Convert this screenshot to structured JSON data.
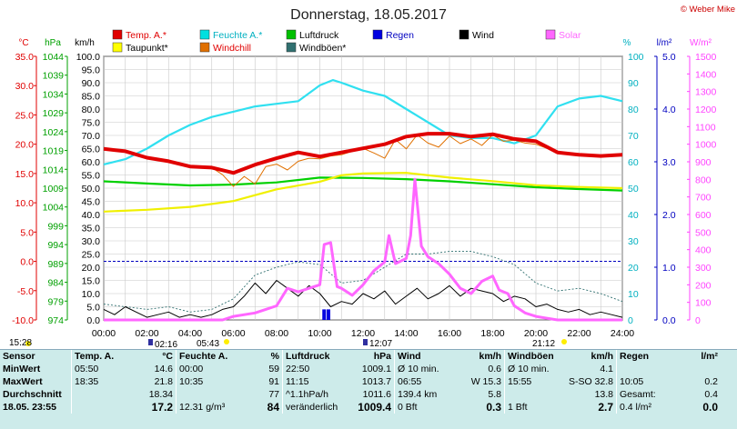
{
  "title": "Donnerstag, 18.05.2017",
  "copyright": "© Weber Mike",
  "legend": [
    {
      "label": "Temp. A.*",
      "color": "#e00000"
    },
    {
      "label": "Feuchte A.*",
      "color": "#00e0e0"
    },
    {
      "label": "Luftdruck",
      "color": "#00c000"
    },
    {
      "label": "Regen",
      "color": "#0000e0"
    },
    {
      "label": "Wind",
      "color": "#000000"
    },
    {
      "label": "Solar",
      "color": "#ff66ff"
    },
    {
      "label": "Taupunkt*",
      "color": "#ffff00"
    },
    {
      "label": "Windchill",
      "color": "#e07000"
    },
    {
      "label": "Windböen*",
      "color": "#307070"
    }
  ],
  "axis_units": {
    "temp": "°C",
    "pressure": "hPa",
    "wind": "km/h",
    "humidity": "%",
    "rain": "l/m²",
    "solar": "W/m²"
  },
  "sun_times": {
    "sunrise_civil": "05:43",
    "sunset": "21:12",
    "day_start": "15:28",
    "moonrise": "02:16",
    "moon_transit": "12:07"
  },
  "chart_data": {
    "type": "line",
    "x_ticks": [
      "00:00",
      "02:00",
      "04:00",
      "06:00",
      "08:00",
      "10:00",
      "12:00",
      "14:00",
      "16:00",
      "18:00",
      "20:00",
      "22:00",
      "24:00"
    ],
    "x_range_h": [
      0,
      24
    ],
    "axes": {
      "temp": {
        "range": [
          -10,
          35
        ],
        "ticks": [
          "35.0",
          "30.0",
          "25.0",
          "20.0",
          "15.0",
          "10.0",
          "5.0",
          "0.0",
          "-5.0",
          "-10.0"
        ]
      },
      "pressure": {
        "range": [
          974,
          1045.5
        ],
        "ticks": [
          "1044",
          "1039",
          "1034",
          "1029",
          "1024",
          "1019",
          "1014",
          "1009",
          "1004",
          "999",
          "994",
          "989",
          "984",
          "979",
          "974"
        ]
      },
      "wind": {
        "range": [
          0,
          100
        ],
        "ticks": [
          "100.0",
          "95.0",
          "90.0",
          "85.0",
          "80.0",
          "75.0",
          "70.0",
          "65.0",
          "60.0",
          "55.0",
          "50.0",
          "45.0",
          "40.0",
          "35.0",
          "30.0",
          "25.0",
          "20.0",
          "15.0",
          "10.0",
          "5.0",
          "0.0"
        ]
      },
      "humidity": {
        "range": [
          0,
          100
        ],
        "ticks": [
          "100",
          "90",
          "80",
          "70",
          "60",
          "50",
          "40",
          "30",
          "20",
          "10",
          "0"
        ]
      },
      "rain": {
        "range": [
          0,
          5
        ],
        "ticks": [
          "5.0",
          "4.0",
          "3.0",
          "2.0",
          "1.0",
          "0.0"
        ]
      },
      "solar": {
        "range": [
          0,
          1500
        ],
        "ticks": [
          "1500",
          "1400",
          "1300",
          "1200",
          "1100",
          "1000",
          "900",
          "800",
          "700",
          "600",
          "500",
          "400",
          "300",
          "200",
          "100",
          "0"
        ]
      }
    },
    "series": [
      {
        "name": "Temp. A.*",
        "axis": "temp",
        "x": [
          0,
          1,
          2,
          3,
          4,
          5,
          6,
          7,
          8,
          9,
          10,
          11,
          12,
          13,
          14,
          15,
          16,
          17,
          18,
          19,
          20,
          21,
          22,
          23,
          24
        ],
        "y": [
          19.2,
          18.8,
          17.7,
          17.1,
          16.2,
          16.0,
          15.1,
          16.5,
          17.6,
          18.6,
          17.9,
          18.6,
          19.3,
          20.0,
          21.3,
          21.8,
          21.8,
          21.3,
          21.7,
          20.9,
          20.5,
          18.6,
          18.2,
          18.0,
          18.2
        ]
      },
      {
        "name": "Feuchte A.*",
        "axis": "humidity",
        "x": [
          0,
          1,
          2,
          3,
          4,
          5,
          6,
          7,
          8,
          9,
          10,
          10.6,
          11,
          12,
          13,
          14,
          15,
          16,
          17,
          18,
          19,
          20,
          21,
          22,
          23,
          24
        ],
        "y": [
          59,
          61,
          65,
          70,
          74,
          77,
          79,
          81,
          82,
          83,
          89,
          91,
          90,
          87,
          85,
          80,
          75,
          70,
          69,
          69,
          67,
          70,
          81,
          84,
          85,
          83
        ]
      },
      {
        "name": "Luftdruck",
        "axis": "pressure",
        "x": [
          0,
          2,
          4,
          6,
          8,
          10,
          12,
          14,
          16,
          18,
          20,
          22,
          24
        ],
        "y": [
          1011.6,
          1011.0,
          1010.5,
          1010.7,
          1011.3,
          1012.6,
          1012.5,
          1012.2,
          1011.6,
          1010.8,
          1010.0,
          1009.5,
          1009.1
        ]
      },
      {
        "name": "Taupunkt*",
        "axis": "temp",
        "x": [
          0,
          2,
          4,
          6,
          8,
          10,
          11,
          12,
          14,
          16,
          18,
          20,
          22,
          24
        ],
        "y": [
          8.5,
          8.8,
          9.3,
          10.3,
          12.3,
          13.6,
          14.7,
          15.0,
          15.1,
          14.3,
          13.7,
          13.0,
          12.7,
          12.5
        ]
      },
      {
        "name": "Windchill",
        "axis": "temp",
        "x": [
          0,
          1,
          2,
          3,
          4,
          5,
          5.5,
          6,
          6.5,
          7,
          7.5,
          8,
          8.5,
          9,
          9.5,
          10,
          10.5,
          11,
          11.5,
          12,
          12.5,
          13,
          13.5,
          14,
          14.5,
          15,
          15.5,
          16,
          16.5,
          17,
          17.5,
          18,
          18.5,
          19,
          19.5,
          20,
          21,
          22,
          23,
          24
        ],
        "y": [
          19.2,
          18.8,
          17.7,
          17.1,
          16.2,
          16.0,
          14.8,
          12.8,
          14.5,
          13.2,
          16.2,
          16.6,
          15.6,
          17.1,
          17.6,
          17.5,
          18.0,
          18.2,
          18.8,
          19.3,
          18.5,
          17.6,
          20.8,
          19.2,
          21.6,
          20.2,
          19.5,
          21.4,
          20.1,
          20.9,
          19.8,
          21.6,
          20.5,
          20.7,
          20.2,
          20.0,
          18.6,
          18.2,
          18.0,
          18.2
        ]
      },
      {
        "name": "Wind",
        "axis": "wind",
        "x": [
          0,
          0.5,
          1,
          1.5,
          2,
          2.5,
          3,
          3.5,
          4,
          4.5,
          5,
          5.5,
          6,
          6.5,
          7,
          7.5,
          8,
          8.5,
          9,
          9.5,
          10,
          10.5,
          11,
          11.5,
          12,
          12.5,
          13,
          13.5,
          14,
          14.5,
          15,
          15.5,
          16,
          16.5,
          17,
          17.5,
          18,
          18.5,
          19,
          19.5,
          20,
          20.5,
          21,
          21.5,
          22,
          22.5,
          23,
          23.5,
          24
        ],
        "y": [
          4,
          2,
          5,
          3,
          1,
          2,
          3,
          1,
          2,
          1,
          2,
          4,
          5,
          9,
          14,
          10,
          15,
          12,
          9,
          13,
          10,
          5,
          7,
          6,
          10,
          8,
          11,
          6,
          9,
          12,
          8,
          10,
          13,
          9,
          12,
          11,
          10,
          7,
          9,
          8,
          5,
          6,
          4,
          3,
          4,
          2,
          3,
          2,
          1
        ]
      },
      {
        "name": "Windböen*",
        "axis": "wind",
        "x": [
          0,
          1,
          2,
          3,
          4,
          5,
          6,
          7,
          8,
          9,
          10,
          11,
          12,
          13,
          14,
          15,
          16,
          17,
          18,
          19,
          20,
          21,
          22,
          23,
          24
        ],
        "y": [
          6,
          5,
          4,
          5,
          3,
          4,
          8,
          17,
          20,
          22,
          21,
          14,
          15,
          20,
          25,
          25,
          26,
          26,
          24,
          21,
          14,
          11,
          12,
          10,
          7
        ]
      },
      {
        "name": "Solar",
        "axis": "solar",
        "x": [
          0,
          5.5,
          6,
          7,
          7.5,
          8,
          8.5,
          9,
          9.5,
          10,
          10.2,
          10.5,
          10.8,
          11,
          11.5,
          12,
          12.5,
          13,
          13.2,
          13.5,
          14,
          14.2,
          14.4,
          14.7,
          15,
          15.5,
          16,
          16.5,
          17,
          17.5,
          18,
          18.3,
          18.7,
          19,
          19.5,
          20,
          20.5,
          21,
          24
        ],
        "y": [
          0,
          0,
          20,
          40,
          60,
          80,
          180,
          160,
          180,
          200,
          430,
          440,
          190,
          180,
          140,
          200,
          280,
          330,
          480,
          320,
          350,
          480,
          800,
          420,
          360,
          320,
          260,
          180,
          150,
          220,
          250,
          170,
          150,
          80,
          40,
          20,
          10,
          0,
          0
        ]
      },
      {
        "name": "Regen",
        "axis": "rain",
        "x": [
          10.2,
          10.4
        ],
        "y": [
          0.2,
          0.2
        ]
      }
    ]
  },
  "stats": {
    "headers": [
      "Sensor",
      "Temp. A.",
      "°C",
      "Feuchte A.",
      "%",
      "Luftdruck",
      "hPa",
      "Wind",
      "km/h",
      "Windböen",
      "km/h",
      "Regen",
      "l/m²"
    ],
    "rows": [
      {
        "label": "MinWert",
        "cells": [
          "05:50",
          "14.6",
          "00:00",
          "59",
          "22:50",
          "1009.1",
          "Ø 10 min.",
          "0.6",
          "Ø 10 min.",
          "4.1",
          "",
          ""
        ]
      },
      {
        "label": "MaxWert",
        "cells": [
          "18:35",
          "21.8",
          "10:35",
          "91",
          "11:15",
          "1013.7",
          "06:55",
          "W 15.3",
          "15:55",
          "S-SO 32.8",
          "10:05",
          "0.2"
        ]
      },
      {
        "label": "Durchschnitt",
        "cells": [
          "",
          "18.34",
          "",
          "77",
          "^1.1hPa/h",
          "1011.6",
          "139.4 km",
          "5.8",
          "",
          "13.8",
          "Gesamt:",
          "0.4"
        ]
      },
      {
        "label": "18.05. 23:55",
        "cells": [
          "",
          "17.2",
          "12.31 g/m³",
          "84",
          "veränderlich",
          "1009.4",
          "0 Bft",
          "0.3",
          "1 Bft",
          "2.7",
          "0.4 l/m²",
          "0.0"
        ]
      }
    ]
  }
}
